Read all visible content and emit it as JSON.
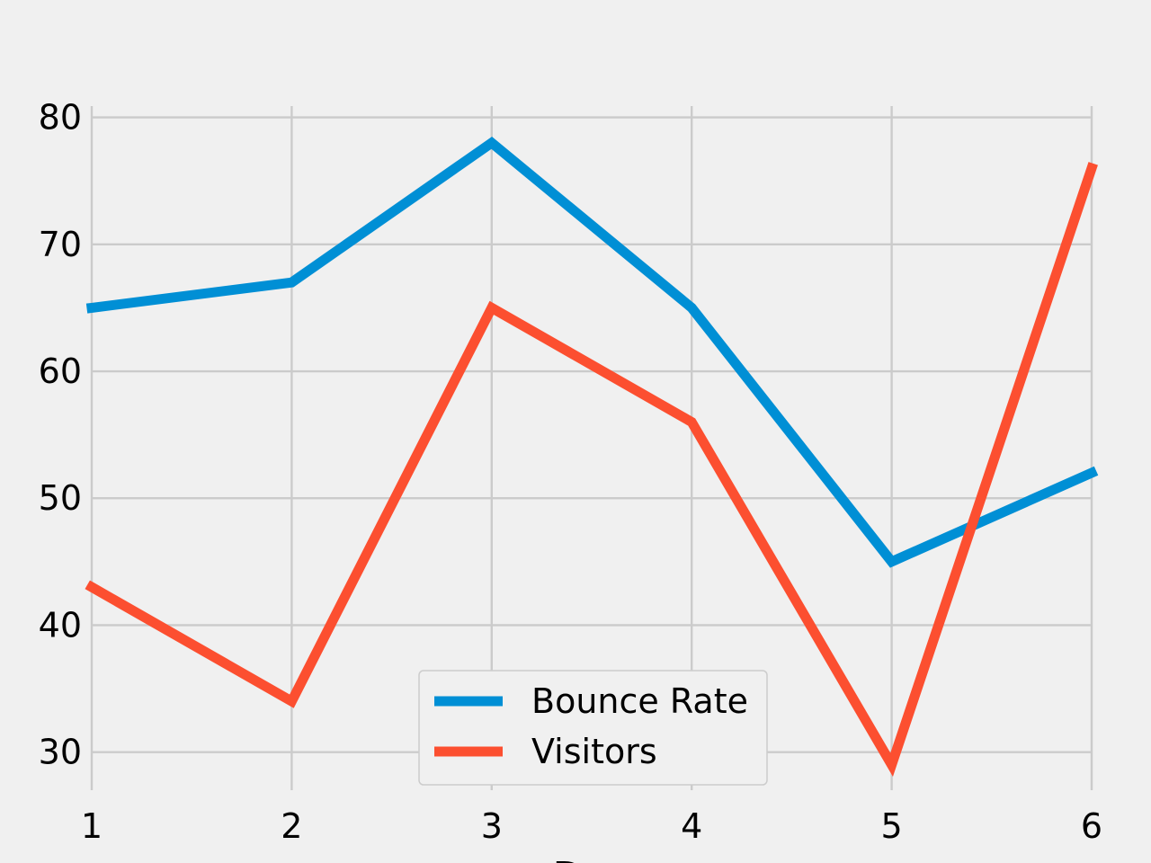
{
  "chart_data": {
    "type": "line",
    "x": [
      1,
      2,
      3,
      4,
      5,
      6
    ],
    "series": [
      {
        "name": "Bounce Rate",
        "color": "#008fd5",
        "values": [
          65,
          67,
          78,
          65,
          45,
          52
        ]
      },
      {
        "name": "Visitors",
        "color": "#fc4f30",
        "values": [
          43,
          34,
          65,
          56,
          29,
          76
        ]
      }
    ],
    "x_ticks": [
      "1",
      "2",
      "3",
      "4",
      "5",
      "6"
    ],
    "y_ticks": [
      "30",
      "40",
      "50",
      "60",
      "70",
      "80"
    ],
    "xlabel": "Day",
    "ylabel": "",
    "title": "",
    "xlim": [
      1,
      6
    ],
    "ylim": [
      27,
      85
    ],
    "grid": true,
    "legend_position": "bottom-center",
    "background_color": "#f0f0f0"
  }
}
